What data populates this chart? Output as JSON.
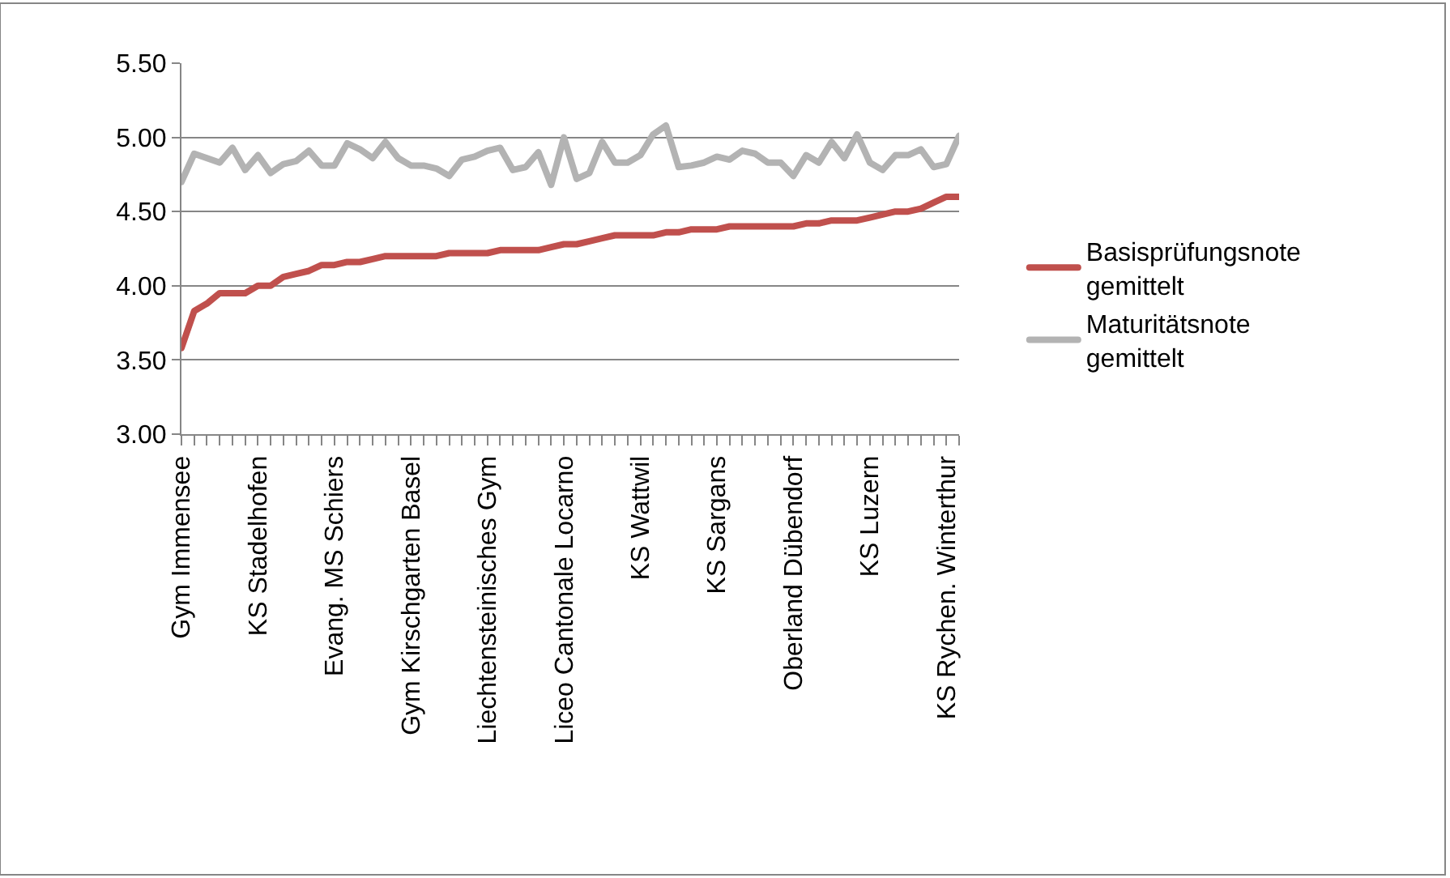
{
  "chart_data": {
    "type": "line",
    "categories": [
      "Gym Immensee",
      null,
      null,
      null,
      null,
      null,
      "KS Stadelhofen",
      null,
      null,
      null,
      null,
      null,
      "Evang. MS Schiers",
      null,
      null,
      null,
      null,
      null,
      "Gym Kirschgarten Basel",
      null,
      null,
      null,
      null,
      null,
      "Liechtensteinisches Gym",
      null,
      null,
      null,
      null,
      null,
      "Liceo Cantonale Locarno",
      null,
      null,
      null,
      null,
      null,
      "KS Wattwil",
      null,
      null,
      null,
      null,
      null,
      "KS Sargans",
      null,
      null,
      null,
      null,
      null,
      "Oberland Dübendorf",
      null,
      null,
      null,
      null,
      null,
      "KS Luzern",
      null,
      null,
      null,
      null,
      null,
      "KS Rychen. Winterthur",
      null
    ],
    "series": [
      {
        "name": "Basisprüfungsnote gemittelt",
        "color": "#c0504d",
        "values": [
          3.58,
          3.83,
          3.88,
          3.95,
          3.95,
          3.95,
          4.0,
          4.0,
          4.06,
          4.08,
          4.1,
          4.14,
          4.14,
          4.16,
          4.16,
          4.18,
          4.2,
          4.2,
          4.2,
          4.2,
          4.2,
          4.22,
          4.22,
          4.22,
          4.22,
          4.24,
          4.24,
          4.24,
          4.24,
          4.26,
          4.28,
          4.28,
          4.3,
          4.32,
          4.34,
          4.34,
          4.34,
          4.34,
          4.36,
          4.36,
          4.38,
          4.38,
          4.38,
          4.4,
          4.4,
          4.4,
          4.4,
          4.4,
          4.4,
          4.42,
          4.42,
          4.44,
          4.44,
          4.44,
          4.46,
          4.48,
          4.5,
          4.5,
          4.52,
          4.56,
          4.6,
          4.6
        ]
      },
      {
        "name": "Maturitätsnote gemittelt",
        "color": "#b3b3b3",
        "values": [
          4.7,
          4.89,
          4.86,
          4.83,
          4.93,
          4.78,
          4.88,
          4.76,
          4.82,
          4.84,
          4.91,
          4.81,
          4.81,
          4.96,
          4.92,
          4.86,
          4.97,
          4.86,
          4.81,
          4.81,
          4.79,
          4.74,
          4.85,
          4.87,
          4.91,
          4.93,
          4.78,
          4.8,
          4.9,
          4.68,
          5.0,
          4.72,
          4.76,
          4.97,
          4.83,
          4.83,
          4.88,
          5.02,
          5.08,
          4.8,
          4.81,
          4.83,
          4.87,
          4.85,
          4.91,
          4.89,
          4.83,
          4.83,
          4.74,
          4.88,
          4.83,
          4.97,
          4.86,
          5.02,
          4.83,
          4.78,
          4.88,
          4.88,
          4.92,
          4.8,
          4.82,
          5.01
        ]
      }
    ],
    "ylim": [
      3.0,
      5.5
    ],
    "yticks": [
      {
        "value": 3.0,
        "label": "3.00"
      },
      {
        "value": 3.5,
        "label": "3.50"
      },
      {
        "value": 4.0,
        "label": "4.00"
      },
      {
        "value": 4.5,
        "label": "4.50"
      },
      {
        "value": 5.0,
        "label": "5.00"
      },
      {
        "value": 5.5,
        "label": "5.50"
      }
    ],
    "grid": "y",
    "legend": "right",
    "marker": "none",
    "line_style": "solid"
  }
}
